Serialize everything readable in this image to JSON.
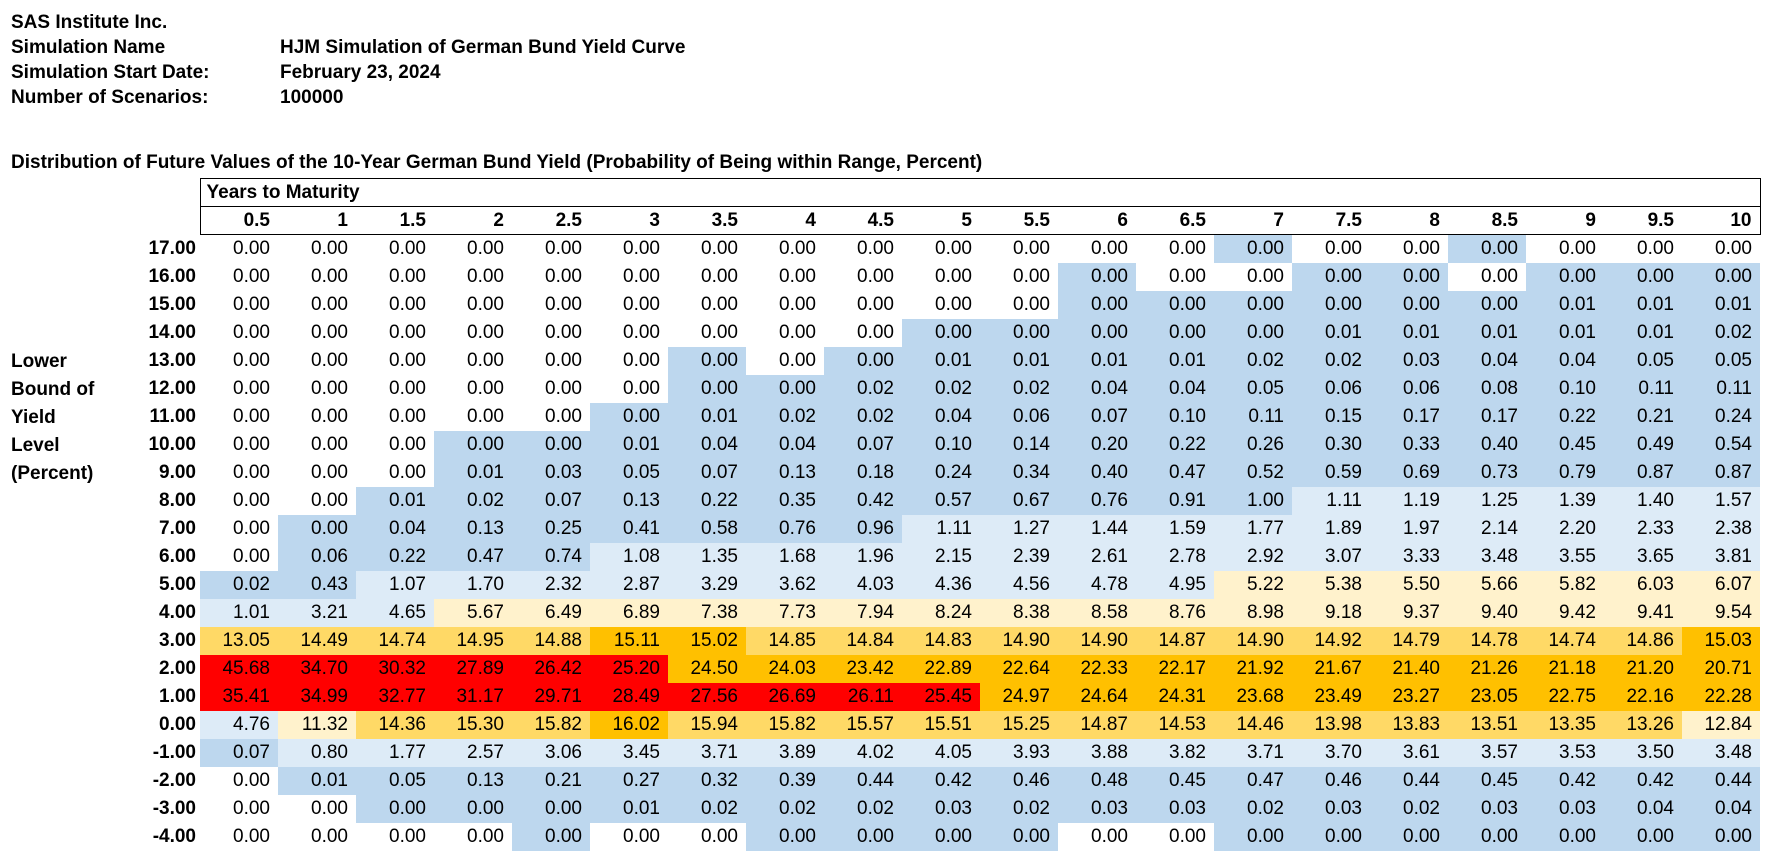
{
  "header": {
    "company": "SAS Institute Inc.",
    "sim_name_label": "Simulation Name",
    "sim_name": "HJM Simulation of German Bund Yield Curve",
    "start_label": "Simulation Start Date:",
    "start_date": "February 23, 2024",
    "scenarios_label": "Number of Scenarios:",
    "scenarios": "100000"
  },
  "table_title": "Distribution of Future Values of the 10-Year German Bund Yield (Probability of Being within Range, Percent)",
  "maturity_title": "Years to Maturity",
  "row_axis_label": [
    "Lower",
    "Bound of",
    "Yield",
    "Level",
    "(Percent)"
  ],
  "columns": [
    "0.5",
    "1",
    "1.5",
    "2",
    "2.5",
    "3",
    "3.5",
    "4",
    "4.5",
    "5",
    "5.5",
    "6",
    "6.5",
    "7",
    "7.5",
    "8",
    "8.5",
    "9",
    "9.5",
    "10"
  ],
  "cell_colors": {
    "0": "#ffffff",
    "1": "#bdd7ee",
    "2": "#ddebf7",
    "3": "#fff2cc",
    "4": "#ffd966",
    "5": "#ffc000",
    "6": "#ff0000"
  },
  "rows": [
    {
      "label": "17.00",
      "values": [
        "0.00",
        "0.00",
        "0.00",
        "0.00",
        "0.00",
        "0.00",
        "0.00",
        "0.00",
        "0.00",
        "0.00",
        "0.00",
        "0.00",
        "0.00",
        "0.00",
        "0.00",
        "0.00",
        "0.00",
        "0.00",
        "0.00",
        "0.00"
      ],
      "shade": [
        0,
        0,
        0,
        0,
        0,
        0,
        0,
        0,
        0,
        0,
        0,
        0,
        0,
        1,
        0,
        0,
        1,
        0,
        0,
        0
      ]
    },
    {
      "label": "16.00",
      "values": [
        "0.00",
        "0.00",
        "0.00",
        "0.00",
        "0.00",
        "0.00",
        "0.00",
        "0.00",
        "0.00",
        "0.00",
        "0.00",
        "0.00",
        "0.00",
        "0.00",
        "0.00",
        "0.00",
        "0.00",
        "0.00",
        "0.00",
        "0.00"
      ],
      "shade": [
        0,
        0,
        0,
        0,
        0,
        0,
        0,
        0,
        0,
        0,
        0,
        1,
        0,
        0,
        1,
        1,
        0,
        1,
        1,
        1
      ]
    },
    {
      "label": "15.00",
      "values": [
        "0.00",
        "0.00",
        "0.00",
        "0.00",
        "0.00",
        "0.00",
        "0.00",
        "0.00",
        "0.00",
        "0.00",
        "0.00",
        "0.00",
        "0.00",
        "0.00",
        "0.00",
        "0.00",
        "0.00",
        "0.01",
        "0.01",
        "0.01"
      ],
      "shade": [
        0,
        0,
        0,
        0,
        0,
        0,
        0,
        0,
        0,
        0,
        0,
        1,
        1,
        1,
        1,
        1,
        1,
        1,
        1,
        1
      ]
    },
    {
      "label": "14.00",
      "values": [
        "0.00",
        "0.00",
        "0.00",
        "0.00",
        "0.00",
        "0.00",
        "0.00",
        "0.00",
        "0.00",
        "0.00",
        "0.00",
        "0.00",
        "0.00",
        "0.00",
        "0.01",
        "0.01",
        "0.01",
        "0.01",
        "0.01",
        "0.02"
      ],
      "shade": [
        0,
        0,
        0,
        0,
        0,
        0,
        0,
        0,
        0,
        1,
        1,
        1,
        1,
        1,
        1,
        1,
        1,
        1,
        1,
        1
      ]
    },
    {
      "label": "13.00",
      "values": [
        "0.00",
        "0.00",
        "0.00",
        "0.00",
        "0.00",
        "0.00",
        "0.00",
        "0.00",
        "0.00",
        "0.01",
        "0.01",
        "0.01",
        "0.01",
        "0.02",
        "0.02",
        "0.03",
        "0.04",
        "0.04",
        "0.05",
        "0.05"
      ],
      "shade": [
        0,
        0,
        0,
        0,
        0,
        0,
        1,
        0,
        1,
        1,
        1,
        1,
        1,
        1,
        1,
        1,
        1,
        1,
        1,
        1
      ]
    },
    {
      "label": "12.00",
      "values": [
        "0.00",
        "0.00",
        "0.00",
        "0.00",
        "0.00",
        "0.00",
        "0.00",
        "0.00",
        "0.02",
        "0.02",
        "0.02",
        "0.04",
        "0.04",
        "0.05",
        "0.06",
        "0.06",
        "0.08",
        "0.10",
        "0.11",
        "0.11"
      ],
      "shade": [
        0,
        0,
        0,
        0,
        0,
        0,
        1,
        1,
        1,
        1,
        1,
        1,
        1,
        1,
        1,
        1,
        1,
        1,
        1,
        1
      ]
    },
    {
      "label": "11.00",
      "values": [
        "0.00",
        "0.00",
        "0.00",
        "0.00",
        "0.00",
        "0.00",
        "0.01",
        "0.02",
        "0.02",
        "0.04",
        "0.06",
        "0.07",
        "0.10",
        "0.11",
        "0.15",
        "0.17",
        "0.17",
        "0.22",
        "0.21",
        "0.24"
      ],
      "shade": [
        0,
        0,
        0,
        0,
        0,
        1,
        1,
        1,
        1,
        1,
        1,
        1,
        1,
        1,
        1,
        1,
        1,
        1,
        1,
        1
      ]
    },
    {
      "label": "10.00",
      "values": [
        "0.00",
        "0.00",
        "0.00",
        "0.00",
        "0.00",
        "0.01",
        "0.04",
        "0.04",
        "0.07",
        "0.10",
        "0.14",
        "0.20",
        "0.22",
        "0.26",
        "0.30",
        "0.33",
        "0.40",
        "0.45",
        "0.49",
        "0.54"
      ],
      "shade": [
        0,
        0,
        0,
        1,
        1,
        1,
        1,
        1,
        1,
        1,
        1,
        1,
        1,
        1,
        1,
        1,
        1,
        1,
        1,
        1
      ]
    },
    {
      "label": "9.00",
      "values": [
        "0.00",
        "0.00",
        "0.00",
        "0.01",
        "0.03",
        "0.05",
        "0.07",
        "0.13",
        "0.18",
        "0.24",
        "0.34",
        "0.40",
        "0.47",
        "0.52",
        "0.59",
        "0.69",
        "0.73",
        "0.79",
        "0.87",
        "0.87"
      ],
      "shade": [
        0,
        0,
        0,
        1,
        1,
        1,
        1,
        1,
        1,
        1,
        1,
        1,
        1,
        1,
        1,
        1,
        1,
        1,
        1,
        1
      ]
    },
    {
      "label": "8.00",
      "values": [
        "0.00",
        "0.00",
        "0.01",
        "0.02",
        "0.07",
        "0.13",
        "0.22",
        "0.35",
        "0.42",
        "0.57",
        "0.67",
        "0.76",
        "0.91",
        "1.00",
        "1.11",
        "1.19",
        "1.25",
        "1.39",
        "1.40",
        "1.57"
      ],
      "shade": [
        0,
        0,
        1,
        1,
        1,
        1,
        1,
        1,
        1,
        1,
        1,
        1,
        1,
        1,
        2,
        2,
        2,
        2,
        2,
        2
      ]
    },
    {
      "label": "7.00",
      "values": [
        "0.00",
        "0.00",
        "0.04",
        "0.13",
        "0.25",
        "0.41",
        "0.58",
        "0.76",
        "0.96",
        "1.11",
        "1.27",
        "1.44",
        "1.59",
        "1.77",
        "1.89",
        "1.97",
        "2.14",
        "2.20",
        "2.33",
        "2.38"
      ],
      "shade": [
        0,
        1,
        1,
        1,
        1,
        1,
        1,
        1,
        1,
        2,
        2,
        2,
        2,
        2,
        2,
        2,
        2,
        2,
        2,
        2
      ]
    },
    {
      "label": "6.00",
      "values": [
        "0.00",
        "0.06",
        "0.22",
        "0.47",
        "0.74",
        "1.08",
        "1.35",
        "1.68",
        "1.96",
        "2.15",
        "2.39",
        "2.61",
        "2.78",
        "2.92",
        "3.07",
        "3.33",
        "3.48",
        "3.55",
        "3.65",
        "3.81"
      ],
      "shade": [
        0,
        1,
        1,
        1,
        1,
        2,
        2,
        2,
        2,
        2,
        2,
        2,
        2,
        2,
        2,
        2,
        2,
        2,
        2,
        2
      ]
    },
    {
      "label": "5.00",
      "values": [
        "0.02",
        "0.43",
        "1.07",
        "1.70",
        "2.32",
        "2.87",
        "3.29",
        "3.62",
        "4.03",
        "4.36",
        "4.56",
        "4.78",
        "4.95",
        "5.22",
        "5.38",
        "5.50",
        "5.66",
        "5.82",
        "6.03",
        "6.07"
      ],
      "shade": [
        1,
        1,
        2,
        2,
        2,
        2,
        2,
        2,
        2,
        2,
        2,
        2,
        2,
        3,
        3,
        3,
        3,
        3,
        3,
        3
      ]
    },
    {
      "label": "4.00",
      "values": [
        "1.01",
        "3.21",
        "4.65",
        "5.67",
        "6.49",
        "6.89",
        "7.38",
        "7.73",
        "7.94",
        "8.24",
        "8.38",
        "8.58",
        "8.76",
        "8.98",
        "9.18",
        "9.37",
        "9.40",
        "9.42",
        "9.41",
        "9.54"
      ],
      "shade": [
        2,
        2,
        2,
        3,
        3,
        3,
        3,
        3,
        3,
        3,
        3,
        3,
        3,
        3,
        3,
        3,
        3,
        3,
        3,
        3
      ]
    },
    {
      "label": "3.00",
      "values": [
        "13.05",
        "14.49",
        "14.74",
        "14.95",
        "14.88",
        "15.11",
        "15.02",
        "14.85",
        "14.84",
        "14.83",
        "14.90",
        "14.90",
        "14.87",
        "14.90",
        "14.92",
        "14.79",
        "14.78",
        "14.74",
        "14.86",
        "15.03"
      ],
      "shade": [
        4,
        4,
        4,
        4,
        4,
        5,
        5,
        4,
        4,
        4,
        4,
        4,
        4,
        4,
        4,
        4,
        4,
        4,
        4,
        5
      ]
    },
    {
      "label": "2.00",
      "values": [
        "45.68",
        "34.70",
        "30.32",
        "27.89",
        "26.42",
        "25.20",
        "24.50",
        "24.03",
        "23.42",
        "22.89",
        "22.64",
        "22.33",
        "22.17",
        "21.92",
        "21.67",
        "21.40",
        "21.26",
        "21.18",
        "21.20",
        "20.71"
      ],
      "shade": [
        6,
        6,
        6,
        6,
        6,
        6,
        5,
        5,
        5,
        5,
        5,
        5,
        5,
        5,
        5,
        5,
        5,
        5,
        5,
        5
      ]
    },
    {
      "label": "1.00",
      "values": [
        "35.41",
        "34.99",
        "32.77",
        "31.17",
        "29.71",
        "28.49",
        "27.56",
        "26.69",
        "26.11",
        "25.45",
        "24.97",
        "24.64",
        "24.31",
        "23.68",
        "23.49",
        "23.27",
        "23.05",
        "22.75",
        "22.16",
        "22.28"
      ],
      "shade": [
        6,
        6,
        6,
        6,
        6,
        6,
        6,
        6,
        6,
        6,
        5,
        5,
        5,
        5,
        5,
        5,
        5,
        5,
        5,
        5
      ]
    },
    {
      "label": "0.00",
      "values": [
        "4.76",
        "11.32",
        "14.36",
        "15.30",
        "15.82",
        "16.02",
        "15.94",
        "15.82",
        "15.57",
        "15.51",
        "15.25",
        "14.87",
        "14.53",
        "14.46",
        "13.98",
        "13.83",
        "13.51",
        "13.35",
        "13.26",
        "12.84"
      ],
      "shade": [
        2,
        3,
        4,
        4,
        4,
        5,
        4,
        4,
        4,
        4,
        4,
        4,
        4,
        4,
        4,
        4,
        4,
        4,
        4,
        3
      ]
    },
    {
      "label": "-1.00",
      "values": [
        "0.07",
        "0.80",
        "1.77",
        "2.57",
        "3.06",
        "3.45",
        "3.71",
        "3.89",
        "4.02",
        "4.05",
        "3.93",
        "3.88",
        "3.82",
        "3.71",
        "3.70",
        "3.61",
        "3.57",
        "3.53",
        "3.50",
        "3.48"
      ],
      "shade": [
        1,
        2,
        2,
        2,
        2,
        2,
        2,
        2,
        2,
        2,
        2,
        2,
        2,
        2,
        2,
        2,
        2,
        2,
        2,
        2
      ]
    },
    {
      "label": "-2.00",
      "values": [
        "0.00",
        "0.01",
        "0.05",
        "0.13",
        "0.21",
        "0.27",
        "0.32",
        "0.39",
        "0.44",
        "0.42",
        "0.46",
        "0.48",
        "0.45",
        "0.47",
        "0.46",
        "0.44",
        "0.45",
        "0.42",
        "0.42",
        "0.44"
      ],
      "shade": [
        0,
        1,
        1,
        1,
        1,
        1,
        1,
        1,
        1,
        1,
        1,
        1,
        1,
        1,
        1,
        1,
        1,
        1,
        1,
        1
      ]
    },
    {
      "label": "-3.00",
      "values": [
        "0.00",
        "0.00",
        "0.00",
        "0.00",
        "0.00",
        "0.01",
        "0.02",
        "0.02",
        "0.02",
        "0.03",
        "0.02",
        "0.03",
        "0.03",
        "0.02",
        "0.03",
        "0.02",
        "0.03",
        "0.03",
        "0.04",
        "0.04"
      ],
      "shade": [
        0,
        0,
        1,
        1,
        1,
        1,
        1,
        1,
        1,
        1,
        1,
        1,
        1,
        1,
        1,
        1,
        1,
        1,
        1,
        1
      ]
    },
    {
      "label": "-4.00",
      "values": [
        "0.00",
        "0.00",
        "0.00",
        "0.00",
        "0.00",
        "0.00",
        "0.00",
        "0.00",
        "0.00",
        "0.00",
        "0.00",
        "0.00",
        "0.00",
        "0.00",
        "0.00",
        "0.00",
        "0.00",
        "0.00",
        "0.00",
        "0.00"
      ],
      "shade": [
        0,
        0,
        0,
        0,
        1,
        0,
        0,
        1,
        1,
        1,
        1,
        0,
        0,
        1,
        1,
        1,
        1,
        1,
        1,
        1
      ]
    }
  ]
}
